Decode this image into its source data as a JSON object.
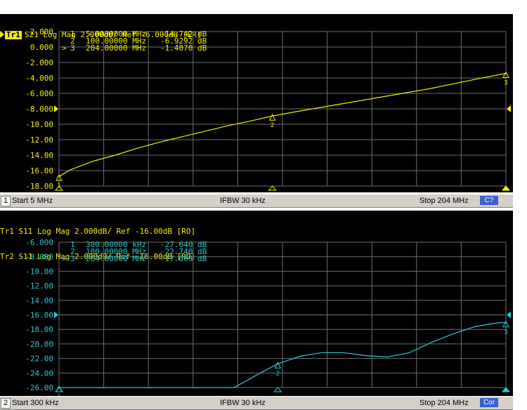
{
  "colors": {
    "trace1": "#f2f000",
    "trace2": "#25cdd5",
    "grid": "#6f6f6f",
    "background": "#000000"
  },
  "channel1": {
    "badge": "Tr1",
    "title": "S21 Log Mag 2.000dB/ Ref -6.000dB [ER]",
    "y_ticks": [
      "2.000",
      "0.000",
      "-2.000",
      "-4.000",
      "-6.000",
      "-8.000",
      "-10.00",
      "-12.00",
      "-14.00",
      "-16.00",
      "-18.00"
    ],
    "ref_value": -6.0,
    "scale_per_div": 2.0,
    "markers": [
      {
        "num": "1",
        "freq": "5.0000000 MHz",
        "value": "-14.742 dB",
        "active": false
      },
      {
        "num": "2",
        "freq": "100.00000 MHz",
        "value": "-6.9292 dB",
        "active": false
      },
      {
        "num": "3",
        "freq": "204.00000 MHz",
        "value": "-1.4070 dB",
        "active": true
      }
    ],
    "status": {
      "channel_number": "1",
      "start": "Start 5 MHz",
      "ifbw": "IFBW 30 kHz",
      "stop": "Stop 204 MHz",
      "correction": "C?"
    },
    "trace_points": [
      [
        5,
        -14.742
      ],
      [
        10,
        -13.9
      ],
      [
        20,
        -12.8
      ],
      [
        30,
        -12.0
      ],
      [
        40,
        -11.1
      ],
      [
        50,
        -10.3
      ],
      [
        60,
        -9.6
      ],
      [
        70,
        -8.9
      ],
      [
        80,
        -8.2
      ],
      [
        90,
        -7.6
      ],
      [
        100,
        -6.9292
      ],
      [
        110,
        -6.4
      ],
      [
        120,
        -5.9
      ],
      [
        130,
        -5.4
      ],
      [
        140,
        -4.9
      ],
      [
        150,
        -4.4
      ],
      [
        160,
        -3.9
      ],
      [
        170,
        -3.4
      ],
      [
        180,
        -2.8
      ],
      [
        190,
        -2.2
      ],
      [
        204,
        -1.407
      ]
    ],
    "x_range": [
      5,
      204
    ]
  },
  "channel2": {
    "titles": [
      "Tr1 S11 Log Mag 2.000dB/ Ref -16.00dB [RO]",
      "Tr2 S11 Log Mag 2.000dB/ Ref -16.00dB [RO]"
    ],
    "y_ticks": [
      "-6.000",
      "-8.000",
      "-10.00",
      "-12.00",
      "-14.00",
      "-16.00",
      "-18.00",
      "-20.00",
      "-22.00",
      "-24.00",
      "-26.00"
    ],
    "ref_value": -16.0,
    "scale_per_div": 2.0,
    "markers": [
      {
        "num": "1",
        "freq": "300.00000 kHz",
        "value": "-27.640 dB",
        "active": false
      },
      {
        "num": "2",
        "freq": "100.00000 MHz",
        "value": "-22.740 dB",
        "active": false
      },
      {
        "num": "3",
        "freq": "204.00000 MHz",
        "value": "-17.069 dB",
        "active": true
      }
    ],
    "status": {
      "channel_number": "2",
      "start": "Start 300 kHz",
      "ifbw": "IFBW 30 kHz",
      "stop": "Stop 204 MHz",
      "correction": "Cor"
    },
    "trace_points": [
      [
        0.3,
        -26.0
      ],
      [
        20,
        -26.0
      ],
      [
        40,
        -26.0
      ],
      [
        60,
        -26.0
      ],
      [
        80,
        -26.0
      ],
      [
        85,
        -25.2
      ],
      [
        92,
        -24.0
      ],
      [
        100,
        -22.74
      ],
      [
        110,
        -21.7
      ],
      [
        120,
        -21.2
      ],
      [
        130,
        -21.2
      ],
      [
        140,
        -21.6
      ],
      [
        150,
        -21.8
      ],
      [
        160,
        -21.2
      ],
      [
        170,
        -19.8
      ],
      [
        180,
        -18.6
      ],
      [
        190,
        -17.6
      ],
      [
        200,
        -17.1
      ],
      [
        204,
        -17.069
      ]
    ],
    "x_range": [
      0.3,
      204
    ]
  }
}
